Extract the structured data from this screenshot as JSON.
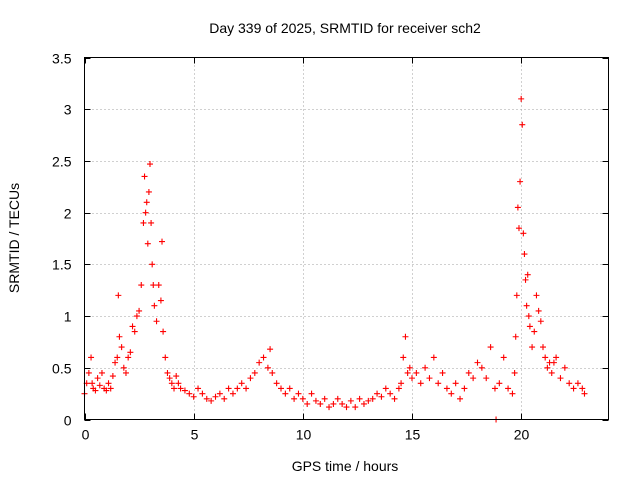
{
  "chart_data": {
    "type": "scatter",
    "title": "Day 339 of 2025, SRMTID for receiver sch2",
    "xlabel": "GPS time / hours",
    "ylabel": "SRMTID / TECUs",
    "xlim": [
      0,
      24
    ],
    "ylim": [
      0,
      3.5
    ],
    "xticks": [
      0,
      5,
      10,
      15,
      20
    ],
    "xtick_labels": [
      "0",
      "5",
      "10",
      "15",
      "20"
    ],
    "yticks": [
      0,
      0.5,
      1,
      1.5,
      2,
      2.5,
      3,
      3.5
    ],
    "ytick_labels": [
      "0",
      "0.5",
      "1",
      "1.5",
      "2",
      "2.5",
      "3",
      "3.5"
    ],
    "grid": true,
    "marker": "plus",
    "color": "#ff0000",
    "series": [
      {
        "name": "sch2",
        "x": [
          0.0,
          0.1,
          0.2,
          0.3,
          0.35,
          0.4,
          0.5,
          0.6,
          0.7,
          0.8,
          0.9,
          1.0,
          1.1,
          1.2,
          1.3,
          1.4,
          1.5,
          1.55,
          1.6,
          1.7,
          1.8,
          1.9,
          2.0,
          2.1,
          2.2,
          2.3,
          2.4,
          2.5,
          2.6,
          2.7,
          2.75,
          2.8,
          2.85,
          2.9,
          2.95,
          3.0,
          3.05,
          3.1,
          3.15,
          3.2,
          3.3,
          3.4,
          3.5,
          3.55,
          3.6,
          3.7,
          3.8,
          3.9,
          4.0,
          4.1,
          4.2,
          4.3,
          4.4,
          4.6,
          4.8,
          5.0,
          5.2,
          5.4,
          5.6,
          5.8,
          6.0,
          6.2,
          6.4,
          6.6,
          6.8,
          7.0,
          7.2,
          7.4,
          7.6,
          7.8,
          8.0,
          8.2,
          8.4,
          8.5,
          8.6,
          8.8,
          9.0,
          9.2,
          9.4,
          9.6,
          9.8,
          10.0,
          10.2,
          10.4,
          10.6,
          10.8,
          11.0,
          11.2,
          11.4,
          11.6,
          11.8,
          12.0,
          12.2,
          12.4,
          12.6,
          12.8,
          13.0,
          13.2,
          13.4,
          13.6,
          13.8,
          14.0,
          14.2,
          14.4,
          14.5,
          14.6,
          14.7,
          14.8,
          14.9,
          15.0,
          15.2,
          15.4,
          15.6,
          15.8,
          16.0,
          16.2,
          16.4,
          16.6,
          16.8,
          17.0,
          17.2,
          17.4,
          17.6,
          17.8,
          18.0,
          18.2,
          18.4,
          18.6,
          18.8,
          18.85,
          19.0,
          19.2,
          19.4,
          19.6,
          19.7,
          19.75,
          19.8,
          19.85,
          19.9,
          19.95,
          20.0,
          20.05,
          20.1,
          20.15,
          20.2,
          20.25,
          20.3,
          20.35,
          20.4,
          20.5,
          20.6,
          20.7,
          20.8,
          20.9,
          21.0,
          21.1,
          21.2,
          21.3,
          21.4,
          21.5,
          21.6,
          21.8,
          22.0,
          22.2,
          22.4,
          22.6,
          22.8,
          22.9
        ],
        "y": [
          0.25,
          0.35,
          0.45,
          0.6,
          0.35,
          0.3,
          0.28,
          0.4,
          0.33,
          0.45,
          0.3,
          0.28,
          0.35,
          0.3,
          0.42,
          0.55,
          0.6,
          1.2,
          0.8,
          0.7,
          0.5,
          0.45,
          0.6,
          0.65,
          0.9,
          0.85,
          1.0,
          1.05,
          1.3,
          1.9,
          2.35,
          2.0,
          2.1,
          1.7,
          2.2,
          2.47,
          1.9,
          1.5,
          1.3,
          1.1,
          0.95,
          1.3,
          1.15,
          1.72,
          0.85,
          0.6,
          0.45,
          0.4,
          0.35,
          0.3,
          0.42,
          0.35,
          0.3,
          0.28,
          0.25,
          0.22,
          0.3,
          0.25,
          0.2,
          0.18,
          0.22,
          0.25,
          0.2,
          0.3,
          0.25,
          0.3,
          0.35,
          0.3,
          0.4,
          0.45,
          0.55,
          0.6,
          0.5,
          0.68,
          0.45,
          0.35,
          0.3,
          0.25,
          0.3,
          0.2,
          0.25,
          0.2,
          0.15,
          0.25,
          0.18,
          0.15,
          0.2,
          0.12,
          0.15,
          0.2,
          0.15,
          0.12,
          0.18,
          0.12,
          0.2,
          0.15,
          0.18,
          0.2,
          0.25,
          0.22,
          0.3,
          0.25,
          0.2,
          0.3,
          0.35,
          0.6,
          0.8,
          0.45,
          0.5,
          0.4,
          0.45,
          0.35,
          0.5,
          0.4,
          0.6,
          0.35,
          0.45,
          0.3,
          0.25,
          0.35,
          0.2,
          0.3,
          0.45,
          0.4,
          0.55,
          0.5,
          0.4,
          0.7,
          0.3,
          0.0,
          0.35,
          0.6,
          0.3,
          0.25,
          0.45,
          0.8,
          1.2,
          2.05,
          1.85,
          2.3,
          3.1,
          2.85,
          1.8,
          1.6,
          1.35,
          1.1,
          1.4,
          1.0,
          0.9,
          0.7,
          0.85,
          1.2,
          1.05,
          0.95,
          0.7,
          0.6,
          0.5,
          0.55,
          0.45,
          0.55,
          0.6,
          0.4,
          0.5,
          0.35,
          0.3,
          0.35,
          0.3,
          0.25
        ]
      }
    ]
  }
}
